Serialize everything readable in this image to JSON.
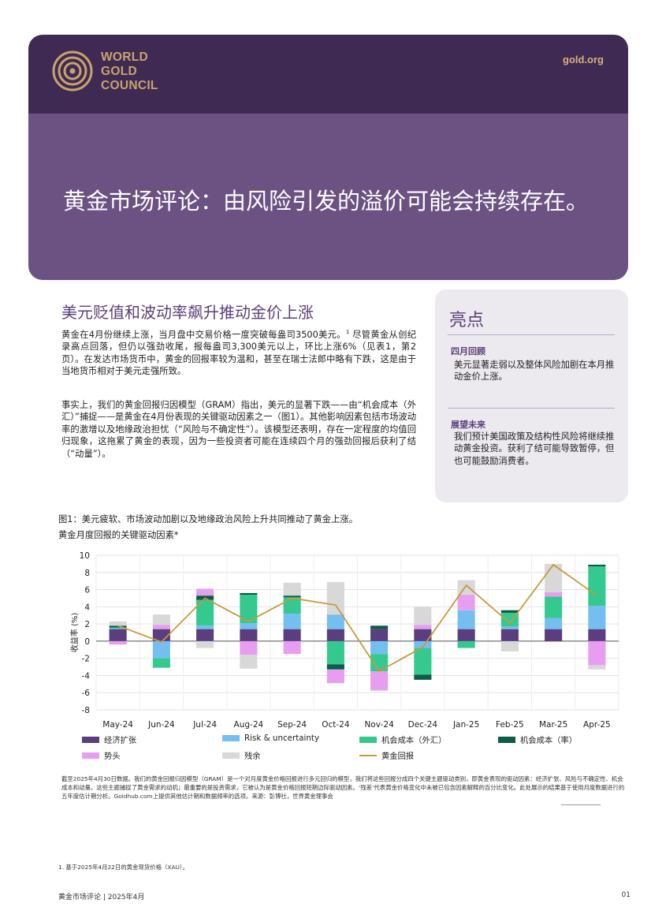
{
  "brand": {
    "logo_lines": [
      "WORLD",
      "GOLD",
      "COUNCIL"
    ],
    "site": "gold.org",
    "colors": {
      "band_dark": "#3f2a54",
      "band": "#6b5283",
      "gold": "#c9a46a",
      "accent": "#5a3f78"
    }
  },
  "title": "黄金市场评论：由风险引发的溢价可能会持续存在。",
  "section": {
    "heading": "美元贬值和波动率飙升推动金价上涨",
    "para1": "黄金在4月份继续上涨，当月盘中交易价格一度突破每盎司3500美元。",
    "para1_note": "1",
    "para1_rest": "尽管黄金从创纪录高点回落，但仍以强劲收尾，报每盎司3,300美元以上，环比上涨6%（见表1，第2页）。在发达市场货币中，黄金的回报率较为温和，甚至在瑞士法郎中略有下跌，这是由于当地货币相对于美元走强所致。",
    "para2": "事实上，我们的黄金回报归因模型（GRAM）指出，美元的显著下跌——由“机会成本（外汇）”捕捉——是黄金在4月份表现的关键驱动因素之一（图1）。其他影响因素包括市场波动率的激增以及地缘政治担忧（“风险与不确定性”）。该模型还表明，存在一定程度的均值回归现象，这拖累了黄金的表现，因为一些投资者可能在连续四个月的强劲回报后获利了结（“动量”）。"
  },
  "highlights": {
    "title": "亮点",
    "items": [
      {
        "heading": "四月回顾",
        "text": "美元显著走弱以及整体风险加剧在本月推动金价上涨。"
      },
      {
        "heading": "展望未来",
        "text": "我们预计美国政策及结构性风险将继续推动黄金投资。获利了结可能导致暂停，但也可能鼓励消费者。"
      }
    ]
  },
  "figure": {
    "title": "图1：美元疲软、市场波动加剧以及地缘政治风险上升共同推动了黄金上涨。",
    "subtitle": "黄金月度回报的关键驱动因素*",
    "note": "截至2025年4月30日数据。我们的黄金回报归因模型（GRAM）是一个对月度黄金价格回报进行多元回归的模型，我们将这些回报分成四个关键主题驱动类别，即黄金表现的驱动因素：经济扩张、风险与不确定性、机会成本和动量。这些主题捕捉了黄金需求的动机；最重要的是投资需求，它被认为是黄金价格回报短期边际驱动因素。‘残差’代表黄金价格变化中未被已包含因素解释的百分比变化。此处展示的结果基于使用月度数据进行的五年度估计期分析。Goldhub.com上提供其他估计期和数据频率的选项。来源：彭博社，世界黄金理事会"
  },
  "chart_data": {
    "type": "bar",
    "stacked": true,
    "ylabel": "收益率 (%)",
    "ylim": [
      -8,
      10
    ],
    "yticks": [
      10,
      8,
      6,
      4,
      2,
      0,
      -2,
      -4,
      -6,
      -8
    ],
    "grid": true,
    "legend_position": "bottom",
    "categories": [
      "May-24",
      "Jun-24",
      "Jul-24",
      "Aug-24",
      "Sep-24",
      "Oct-24",
      "Nov-24",
      "Dec-24",
      "Jan-25",
      "Feb-25",
      "Mar-25",
      "Apr-25"
    ],
    "series": [
      {
        "name": "经济扩张",
        "color": "#5b3e7e",
        "values": [
          1.4,
          1.4,
          1.4,
          1.4,
          1.4,
          1.4,
          1.4,
          1.4,
          1.4,
          1.4,
          1.4,
          1.4
        ]
      },
      {
        "name": "Risk & uncertainty",
        "color": "#74bff0",
        "values": [
          0.1,
          -2.0,
          0.4,
          0.7,
          1.8,
          1.7,
          -1.5,
          -0.8,
          2.2,
          0.3,
          1.3,
          2.7
        ]
      },
      {
        "name": "机会成本（外汇）",
        "color": "#33c98f",
        "values": [
          0.1,
          -1.1,
          3.0,
          3.3,
          1.9,
          -2.7,
          -2.0,
          -3.1,
          -0.8,
          1.6,
          2.5,
          4.6
        ]
      },
      {
        "name": "机会成本（率）",
        "color": "#0b5c48",
        "values": [
          0.2,
          0.0,
          0.5,
          0.2,
          0.2,
          -0.6,
          0.4,
          -0.6,
          0.0,
          0.3,
          0.0,
          0.2
        ]
      },
      {
        "name": "势头",
        "color": "#e79ef0",
        "values": [
          -0.4,
          0.5,
          0.8,
          -1.6,
          -1.5,
          -1.6,
          -2.2,
          0.5,
          1.8,
          0.0,
          0.5,
          -2.8
        ]
      },
      {
        "name": "残余",
        "color": "#d8d8d8",
        "values": [
          0.5,
          1.2,
          -0.8,
          -1.6,
          1.5,
          3.8,
          -0.1,
          2.1,
          1.7,
          -1.2,
          3.3,
          -0.5
        ]
      }
    ],
    "line": {
      "name": "黄金回报",
      "color": "#c79a3c",
      "values": [
        1.8,
        -0.1,
        5.0,
        2.3,
        5.0,
        4.2,
        -3.5,
        -0.7,
        6.5,
        2.1,
        8.9,
        5.3
      ]
    }
  },
  "footnote": "1. 基于2025年4月22日的黄金现货价格（XAU）。",
  "footer": {
    "left": "黄金市场评论 | 2025年4月",
    "right": "01"
  }
}
